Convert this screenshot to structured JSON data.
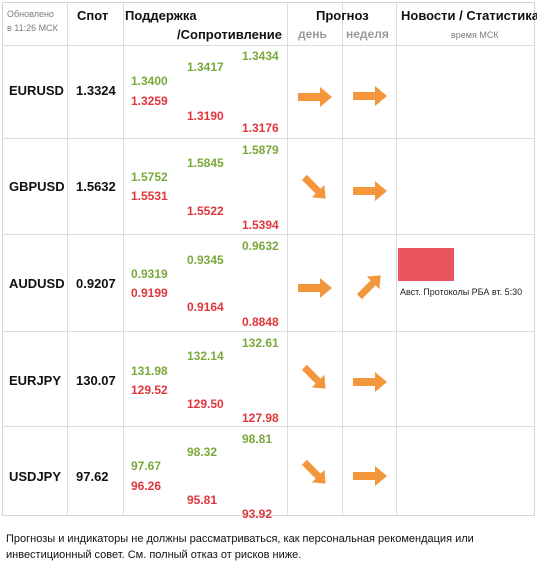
{
  "header": {
    "updated_line1": "Обновлено",
    "updated_line2": "в 11:26 МСК",
    "spot": "Спот",
    "support": "Поддержка",
    "resistance": "/Сопротивление",
    "forecast": "Прогноз",
    "day": "день",
    "week": "неделя",
    "news": "Новости / Статистика",
    "news_time": "время МСК"
  },
  "rows": [
    {
      "pair": "EURUSD",
      "spot": "1.3324",
      "s1_top": "1.3400",
      "s1_bottom": "1.3259",
      "s2_top": "1.3417",
      "s2_bottom": "1.3190",
      "s3_top": "1.3434",
      "s3_bottom": "1.3176",
      "day_icon": "arrow-right-icon",
      "week_icon": "arrow-right-icon"
    },
    {
      "pair": "GBPUSD",
      "spot": "1.5632",
      "s1_top": "1.5752",
      "s1_bottom": "1.5531",
      "s2_top": "1.5845",
      "s2_bottom": "1.5522",
      "s3_top": "1.5879",
      "s3_bottom": "1.5394",
      "day_icon": "arrow-down-right-icon",
      "week_icon": "arrow-right-icon"
    },
    {
      "pair": "AUDUSD",
      "spot": "0.9207",
      "s1_top": "0.9319",
      "s1_bottom": "0.9199",
      "s2_top": "0.9345",
      "s2_bottom": "0.9164",
      "s3_top": "0.9632",
      "s3_bottom": "0.8848",
      "day_icon": "arrow-right-icon",
      "week_icon": "arrow-up-right-icon",
      "news": "Авст. Протоколы РБА вт. 5:30"
    },
    {
      "pair": "EURJPY",
      "spot": "130.07",
      "s1_top": "131.98",
      "s1_bottom": "129.52",
      "s2_top": "132.14",
      "s2_bottom": "129.50",
      "s3_top": "132.61",
      "s3_bottom": "127.98",
      "day_icon": "arrow-down-right-icon",
      "week_icon": "arrow-right-icon"
    },
    {
      "pair": "USDJPY",
      "spot": "97.62",
      "s1_top": "97.67",
      "s1_bottom": "96.26",
      "s2_top": "98.32",
      "s2_bottom": "95.81",
      "s3_top": "98.81",
      "s3_bottom": "93.92",
      "day_icon": "arrow-down-right-icon",
      "week_icon": "arrow-right-icon"
    }
  ],
  "colors": {
    "support_green": "#79a93a",
    "resistance_red": "#e0363c",
    "arrow_orange": "#f4963c",
    "news_block": "#e8555e"
  },
  "disclaimer": "Прогнозы и индикаторы не должны рассматриваться, как персональная рекомендация или инвестиционный совет. См. полный отказ от рисков ниже."
}
